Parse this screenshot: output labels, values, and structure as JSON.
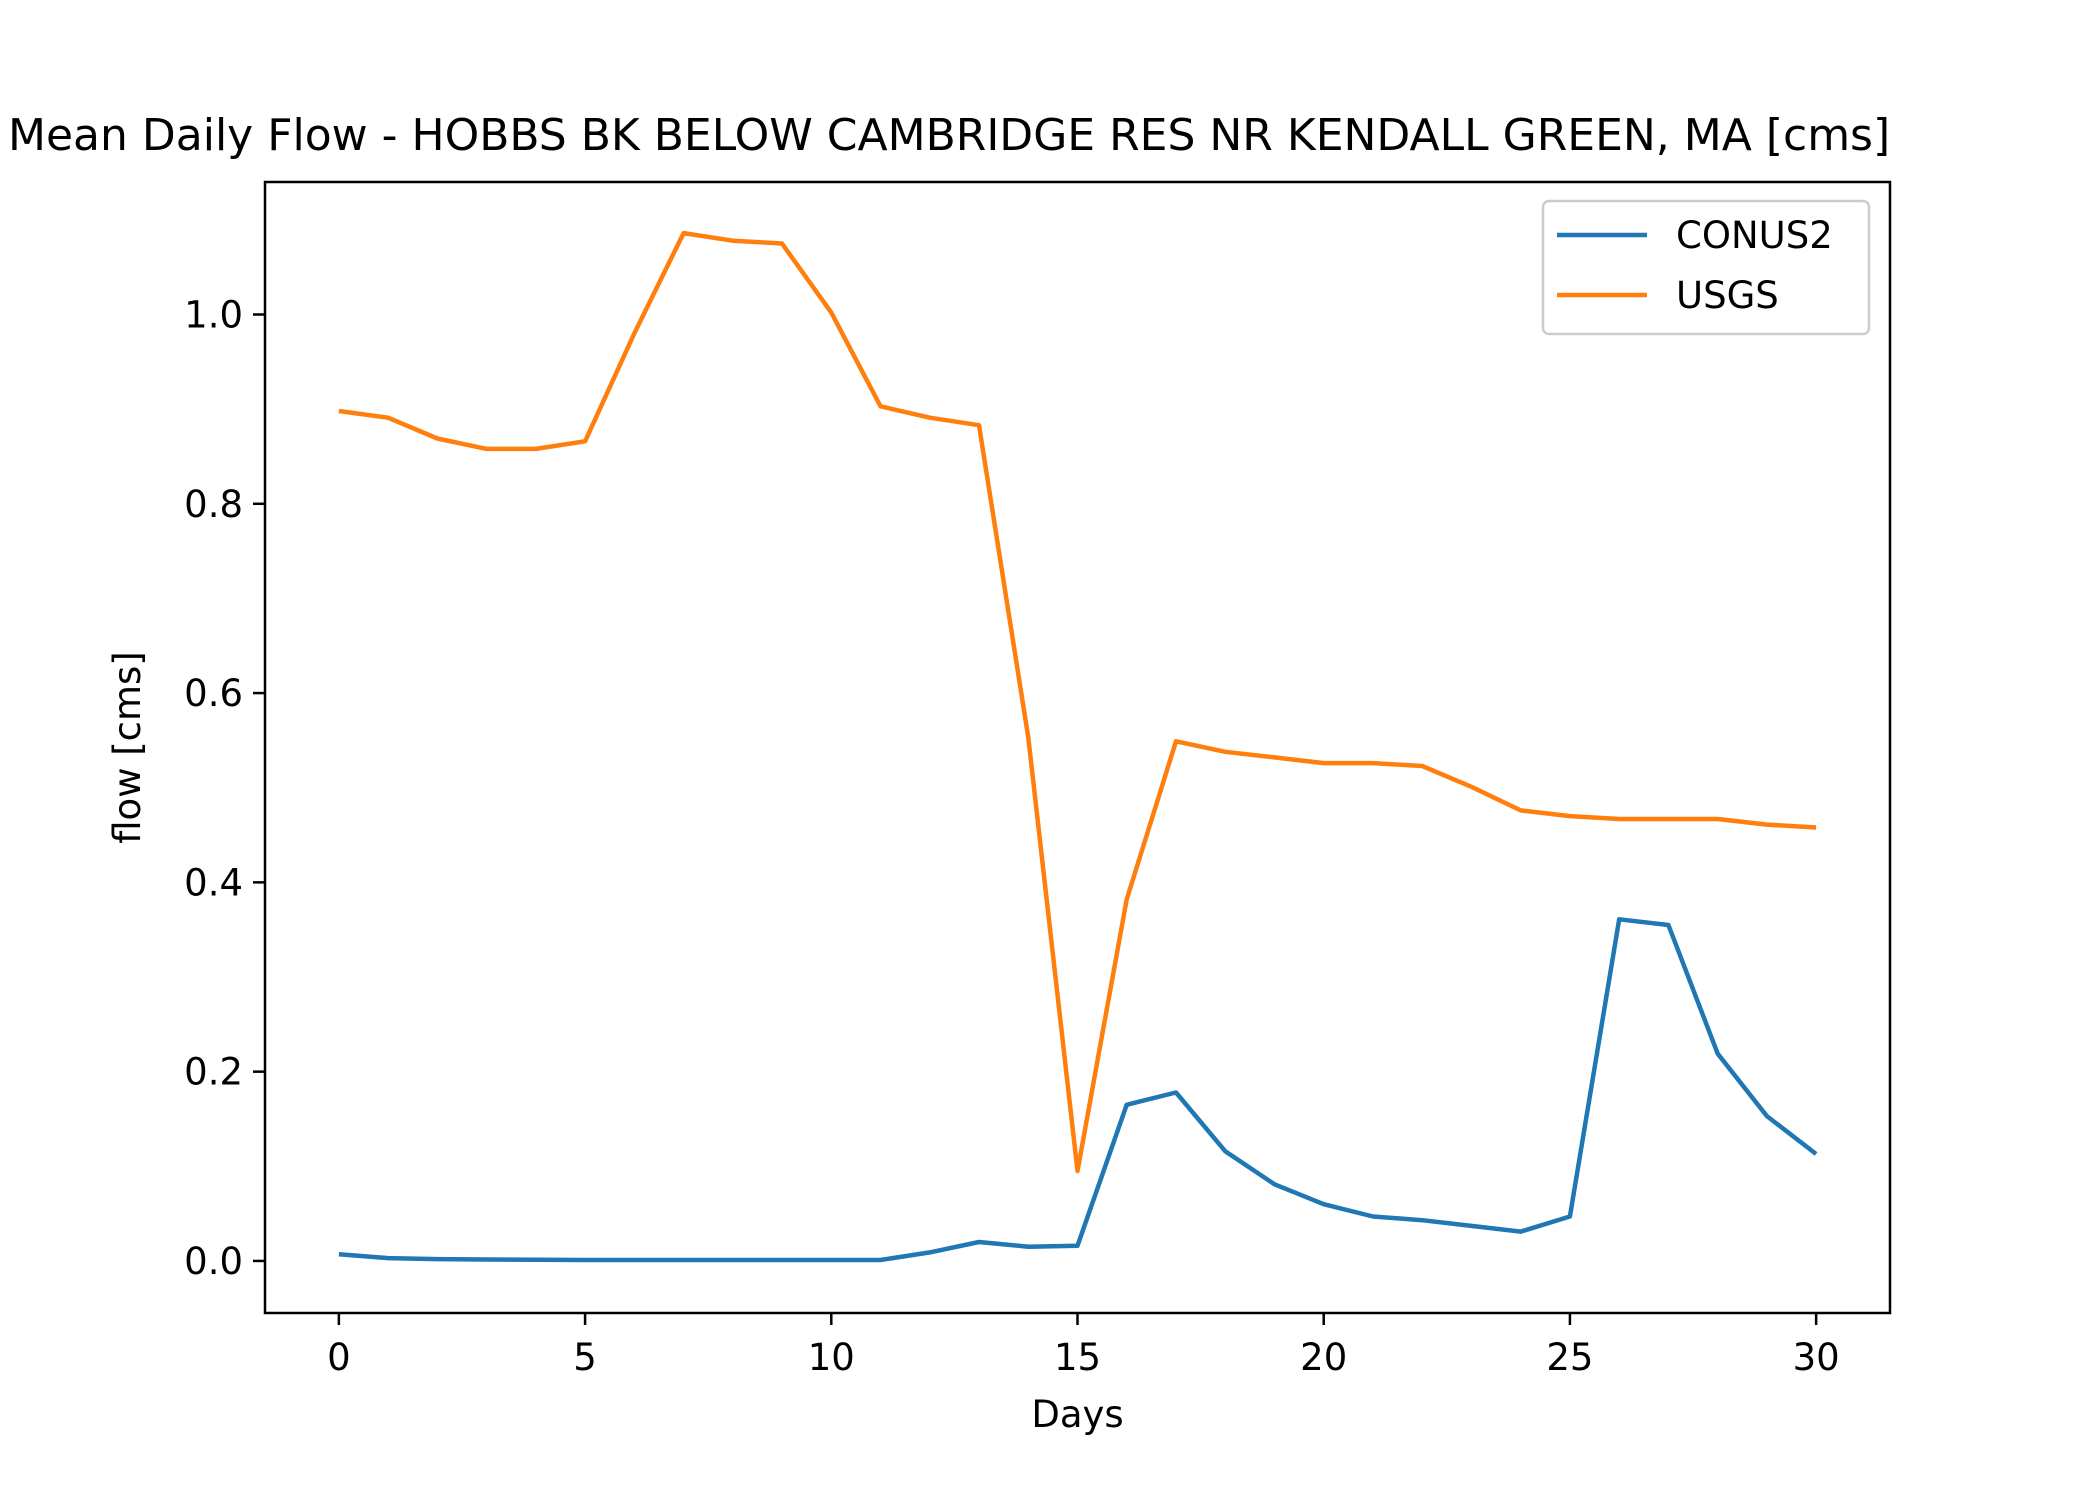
{
  "chart_data": {
    "type": "line",
    "title": "Mean Daily Flow - HOBBS BK BELOW CAMBRIDGE RES NR KENDALL GREEN, MA [cms]",
    "xlabel": "Days",
    "ylabel": "flow [cms]",
    "xlim": [
      -1.5,
      31.5
    ],
    "ylim": [
      -0.055,
      1.14
    ],
    "xticks": [
      0,
      5,
      10,
      15,
      20,
      25,
      30
    ],
    "yticks": [
      0.0,
      0.2,
      0.4,
      0.6,
      0.8,
      1.0
    ],
    "xtick_labels": [
      "0",
      "5",
      "10",
      "15",
      "20",
      "25",
      "30"
    ],
    "ytick_labels": [
      "0.0",
      "0.2",
      "0.4",
      "0.6",
      "0.8",
      "1.0"
    ],
    "grid": false,
    "legend_position": "top-right",
    "x": [
      0,
      1,
      2,
      3,
      4,
      5,
      6,
      7,
      8,
      9,
      10,
      11,
      12,
      13,
      14,
      15,
      16,
      17,
      18,
      19,
      20,
      21,
      22,
      23,
      24,
      25,
      26,
      27,
      28,
      29,
      30
    ],
    "series": [
      {
        "name": "CONUS2",
        "color": "#1f77b4",
        "values": [
          0.007,
          0.003,
          0.002,
          0.0015,
          0.0013,
          0.001,
          0.001,
          0.001,
          0.001,
          0.001,
          0.001,
          0.001,
          0.009,
          0.02,
          0.015,
          0.016,
          0.165,
          0.178,
          0.116,
          0.081,
          0.06,
          0.047,
          0.043,
          0.037,
          0.031,
          0.047,
          0.361,
          0.355,
          0.219,
          0.153,
          0.113
        ]
      },
      {
        "name": "USGS",
        "color": "#ff7f0e",
        "values": [
          0.898,
          0.891,
          0.869,
          0.858,
          0.858,
          0.866,
          0.98,
          1.086,
          1.078,
          1.075,
          1.002,
          0.903,
          0.891,
          0.883,
          0.553,
          0.095,
          0.382,
          0.549,
          0.538,
          0.532,
          0.526,
          0.526,
          0.523,
          0.501,
          0.476,
          0.47,
          0.467,
          0.467,
          0.467,
          0.461,
          0.458
        ]
      }
    ]
  }
}
